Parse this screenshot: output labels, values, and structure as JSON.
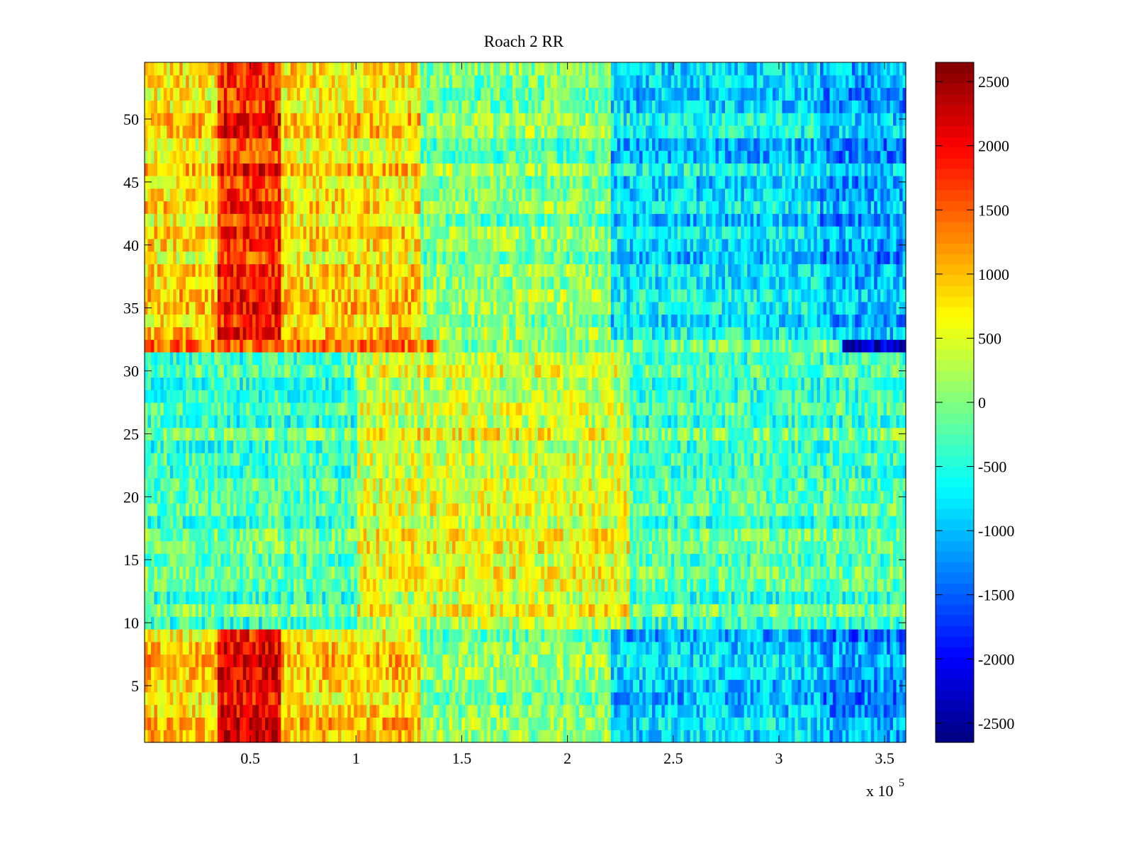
{
  "chart_data": {
    "type": "heatmap",
    "title": "Roach 2 RR",
    "xlabel": "",
    "ylabel": "",
    "x_exponent_label": "x 10",
    "x_exponent_power": "5",
    "xlim": [
      0,
      360000
    ],
    "ylim": [
      0.5,
      54.5
    ],
    "rows": 54,
    "x_ticks": [
      {
        "value": 50000,
        "label": "0.5"
      },
      {
        "value": 100000,
        "label": "1"
      },
      {
        "value": 150000,
        "label": "1.5"
      },
      {
        "value": 200000,
        "label": "2"
      },
      {
        "value": 250000,
        "label": "2.5"
      },
      {
        "value": 300000,
        "label": "3"
      },
      {
        "value": 350000,
        "label": "3.5"
      }
    ],
    "y_ticks": [
      {
        "value": 5,
        "label": "5"
      },
      {
        "value": 10,
        "label": "10"
      },
      {
        "value": 15,
        "label": "15"
      },
      {
        "value": 20,
        "label": "20"
      },
      {
        "value": 25,
        "label": "25"
      },
      {
        "value": 30,
        "label": "30"
      },
      {
        "value": 35,
        "label": "35"
      },
      {
        "value": 40,
        "label": "40"
      },
      {
        "value": 45,
        "label": "45"
      },
      {
        "value": 50,
        "label": "50"
      }
    ],
    "colorbar": {
      "colormap": "jet",
      "clim": [
        -2650,
        2650
      ],
      "ticks": [
        {
          "value": 2500,
          "label": "2500"
        },
        {
          "value": 2000,
          "label": "2000"
        },
        {
          "value": 1500,
          "label": "1500"
        },
        {
          "value": 1000,
          "label": "1000"
        },
        {
          "value": 500,
          "label": "500"
        },
        {
          "value": 0,
          "label": "0"
        },
        {
          "value": -500,
          "label": "-500"
        },
        {
          "value": -1000,
          "label": "-1000"
        },
        {
          "value": -1500,
          "label": "-1500"
        },
        {
          "value": -2000,
          "label": "-2000"
        },
        {
          "value": -2500,
          "label": "-2500"
        }
      ]
    },
    "approximate_pattern": {
      "description_values": "estimated mean value per region; cells are noisy around these",
      "regions": [
        {
          "rows": [
            1,
            9
          ],
          "x_range": [
            35000,
            65000
          ],
          "value": 2100
        },
        {
          "rows": [
            1,
            9
          ],
          "x_range": [
            0,
            130000
          ],
          "value": 900
        },
        {
          "rows": [
            1,
            9
          ],
          "x_range": [
            220000,
            320000
          ],
          "value": -900
        },
        {
          "rows": [
            1,
            9
          ],
          "x_range": [
            320000,
            360000
          ],
          "value": -1200
        },
        {
          "rows": [
            10,
            31
          ],
          "x_range": [
            100000,
            230000
          ],
          "value": 500
        },
        {
          "rows": [
            10,
            31
          ],
          "x_range": [
            0,
            360000
          ],
          "value": -250
        },
        {
          "rows": [
            32,
            32
          ],
          "x_range": [
            0,
            140000
          ],
          "value": 1500
        },
        {
          "rows": [
            32,
            32
          ],
          "x_range": [
            330000,
            360000
          ],
          "value": -2300
        },
        {
          "rows": [
            33,
            54
          ],
          "x_range": [
            35000,
            65000
          ],
          "value": 1800
        },
        {
          "rows": [
            33,
            54
          ],
          "x_range": [
            0,
            130000
          ],
          "value": 800
        },
        {
          "rows": [
            33,
            54
          ],
          "x_range": [
            220000,
            320000
          ],
          "value": -800
        },
        {
          "rows": [
            33,
            54
          ],
          "x_range": [
            320000,
            360000
          ],
          "value": -1100
        }
      ]
    }
  }
}
